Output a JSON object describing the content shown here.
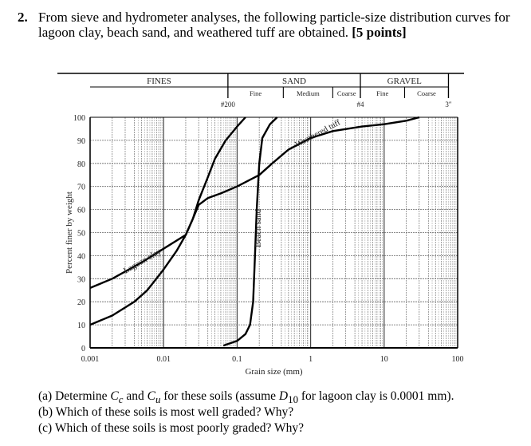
{
  "question": {
    "number": "2.",
    "line1": "From sieve and hydrometer analyses, the following particle-size distribution curves for",
    "line2": "lagoon clay, beach sand, and weathered tuff are obtained.",
    "points": "[5 points]"
  },
  "subquestions": {
    "a": {
      "marker": "(a)",
      "pre": "Determine ",
      "cc": "C",
      "cc_sub": "c",
      "and": " and ",
      "cu": "C",
      "cu_sub": "u",
      "mid": " for these soils (assume ",
      "d": "D",
      "d_sub": "10",
      "post": " for lagoon clay is 0.0001 mm)."
    },
    "b": {
      "marker": "(b)",
      "text": "Which of these soils is most well graded? Why?"
    },
    "c": {
      "marker": "(c)",
      "text": "Which of these soils is most poorly graded? Why?"
    }
  },
  "chart_data": {
    "type": "line",
    "xscale": "log",
    "xlabel": "Grain size (mm)",
    "ylabel": "Percent finer by weight",
    "xlim": [
      0.001,
      100
    ],
    "ylim": [
      0,
      100
    ],
    "xticks": [
      {
        "v": 0.001,
        "label": "0.001"
      },
      {
        "v": 0.01,
        "label": "0.01"
      },
      {
        "v": 0.1,
        "label": "0.1"
      },
      {
        "v": 1,
        "label": "1"
      },
      {
        "v": 10,
        "label": "10"
      },
      {
        "v": 100,
        "label": "100"
      }
    ],
    "yticks": [
      0,
      10,
      20,
      30,
      40,
      50,
      60,
      70,
      80,
      90,
      100
    ],
    "grid": true,
    "classification": {
      "groups": [
        {
          "label": "FINES",
          "from": 0.001,
          "to": 0.075
        },
        {
          "label": "SAND",
          "from": 0.075,
          "to": 4.75
        },
        {
          "label": "GRAVEL",
          "from": 4.75,
          "to": 75
        }
      ],
      "subgroups": [
        {
          "label": "Fine",
          "from": 0.075,
          "to": 0.425
        },
        {
          "label": "Medium",
          "from": 0.425,
          "to": 2.0
        },
        {
          "label": "Coarse",
          "from": 2.0,
          "to": 4.75
        },
        {
          "label": "Fine",
          "from": 4.75,
          "to": 19
        },
        {
          "label": "Coarse",
          "from": 19,
          "to": 75
        }
      ],
      "sieves": [
        {
          "label": "#200",
          "v": 0.075
        },
        {
          "label": "#4",
          "v": 4.75
        },
        {
          "label": "3″",
          "v": 75
        }
      ]
    },
    "series": [
      {
        "name": "Lagoon clay",
        "points": [
          [
            0.001,
            26
          ],
          [
            0.002,
            30
          ],
          [
            0.005,
            37
          ],
          [
            0.01,
            43
          ],
          [
            0.02,
            49
          ],
          [
            0.025,
            56
          ],
          [
            0.03,
            64
          ],
          [
            0.04,
            74
          ],
          [
            0.05,
            82
          ],
          [
            0.07,
            90
          ],
          [
            0.1,
            96
          ],
          [
            0.13,
            100
          ]
        ]
      },
      {
        "name": "Beach sand",
        "points": [
          [
            0.065,
            1
          ],
          [
            0.1,
            3
          ],
          [
            0.13,
            6
          ],
          [
            0.15,
            10
          ],
          [
            0.165,
            20
          ],
          [
            0.175,
            40
          ],
          [
            0.185,
            60
          ],
          [
            0.2,
            80
          ],
          [
            0.22,
            91
          ],
          [
            0.28,
            97
          ],
          [
            0.35,
            100
          ]
        ]
      },
      {
        "name": "Weathered tuff",
        "points": [
          [
            0.001,
            10
          ],
          [
            0.002,
            14
          ],
          [
            0.004,
            20
          ],
          [
            0.006,
            25
          ],
          [
            0.01,
            34
          ],
          [
            0.015,
            42
          ],
          [
            0.02,
            49
          ],
          [
            0.025,
            56
          ],
          [
            0.03,
            62
          ],
          [
            0.04,
            65
          ],
          [
            0.06,
            67
          ],
          [
            0.1,
            70
          ],
          [
            0.2,
            75
          ],
          [
            0.3,
            80
          ],
          [
            0.5,
            86
          ],
          [
            1,
            91
          ],
          [
            2,
            94
          ],
          [
            5,
            96
          ],
          [
            10,
            97
          ],
          [
            20,
            98.5
          ],
          [
            30,
            100
          ]
        ]
      }
    ]
  }
}
